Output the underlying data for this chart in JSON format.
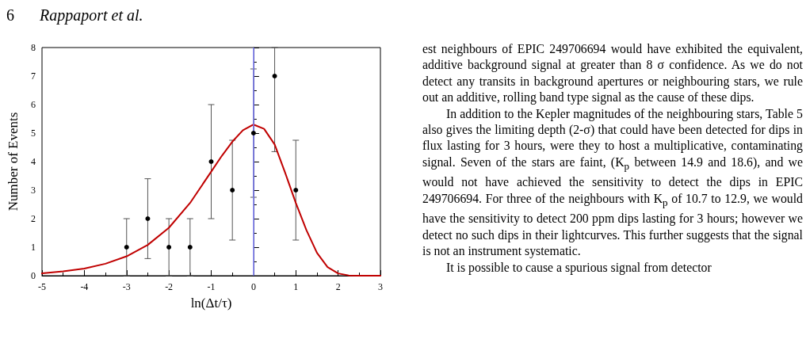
{
  "chart_data": {
    "type": "scatter",
    "xlabel": "ln(Δt/τ)",
    "ylabel": "Number of Events",
    "xlim": [
      -5,
      3
    ],
    "xticks": [
      -5,
      -4,
      -3,
      -2,
      -1,
      0,
      1,
      2,
      3
    ],
    "ylim": [
      0,
      8
    ],
    "yticks": [
      0,
      1,
      2,
      3,
      4,
      5,
      6,
      7,
      8
    ],
    "grid": false,
    "marker": "circle",
    "series": [
      {
        "color": "#000000",
        "x": [
          -3,
          -2.5,
          -2,
          -1.5,
          -1,
          -0.5,
          0,
          0.5,
          1
        ],
        "values": [
          1,
          2,
          1,
          1,
          4,
          3,
          5,
          7,
          3
        ],
        "errors": [
          [
            0,
            2
          ],
          [
            0.6,
            3.4
          ],
          [
            0,
            2
          ],
          [
            0,
            2
          ],
          [
            2,
            6
          ],
          [
            1.25,
            4.75
          ],
          [
            2.75,
            7.25
          ],
          [
            4.35,
            8
          ],
          [
            1.25,
            4.75
          ]
        ]
      },
      {
        "type": "line",
        "color": "#c00000",
        "marker": "none",
        "line_style": "solid",
        "x": [
          -5,
          -4.5,
          -4,
          -3.5,
          -3,
          -2.5,
          -2,
          -1.5,
          -1,
          -0.75,
          -0.5,
          -0.25,
          0,
          0.25,
          0.5,
          0.75,
          1,
          1.25,
          1.5,
          1.75,
          2,
          2.25,
          2.5,
          3
        ],
        "values": [
          0.08,
          0.15,
          0.25,
          0.42,
          0.68,
          1.08,
          1.68,
          2.55,
          3.65,
          4.2,
          4.7,
          5.1,
          5.3,
          5.15,
          4.6,
          3.6,
          2.55,
          1.6,
          0.8,
          0.3,
          0.08,
          0.01,
          0,
          0
        ]
      }
    ],
    "ref_lines": [
      {
        "axis": "x",
        "value": 0,
        "color": "#8080ff",
        "line_style": "solid"
      }
    ],
    "annotations": [
      "6",
      "Rappaport et al.",
      "est neighbours of EPIC 249706694 would have exhibited the equivalent, additive background signal at greater than 8 σ confidence. As we do not detect any transits in background apertures or neighbouring stars, we rule out an additive, rolling band type signal as the cause of these dips.",
      "In addition to the Kepler magnitudes of the neighbouring stars, Table 5 also gives the limiting depth (2-σ) that could have been detected for dips in flux lasting for 3 hours, were they to host a multiplicative, contaminating signal. Seven of the stars are faint, (K$_{p}$ between 14.9 and 18.6), and we would not have achieved the sensitivity to detect the dips in EPIC 249706694. For three of the neighbours with K$_{p}$ of 10.7 to 12.9, we would have the sensitivity to detect 200 ppm dips lasting for 3 hours; however we detect no such dips in their lightcurves. This further suggests that the signal is not an instrument systematic.",
      "It is possible to cause a spurious signal from detector"
    ]
  }
}
